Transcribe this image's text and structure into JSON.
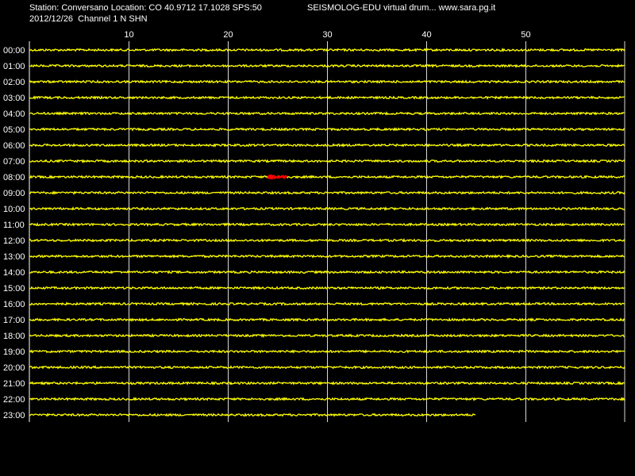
{
  "header": {
    "station_line": "Station: Conversano Location: CO 40.9712 17.1028 SPS:50",
    "app_line": "SEISMOLOG-EDU virtual drum... www.sara.pg.it",
    "date_channel_line": "2012/12/26  Channel 1 N SHN"
  },
  "colors": {
    "background": "#000000",
    "trace": "#ffff00",
    "event": "#ff0000",
    "grid": "#ffffff",
    "text": "#ffffff"
  },
  "chart_data": {
    "type": "line",
    "title": "",
    "xlabel": "",
    "ylabel": "",
    "xlim": [
      0,
      60
    ],
    "x_ticks": [
      10,
      20,
      30,
      40,
      50
    ],
    "grid": true,
    "rows": [
      "00:00",
      "01:00",
      "02:00",
      "03:00",
      "04:00",
      "05:00",
      "06:00",
      "07:00",
      "08:00",
      "09:00",
      "10:00",
      "11:00",
      "12:00",
      "13:00",
      "14:00",
      "15:00",
      "16:00",
      "17:00",
      "18:00",
      "19:00",
      "20:00",
      "21:00",
      "22:00",
      "23:00"
    ],
    "last_row_end_minute": 45,
    "events": [
      {
        "row": "08:00",
        "start_minute": 24,
        "end_minute": 26
      }
    ]
  }
}
